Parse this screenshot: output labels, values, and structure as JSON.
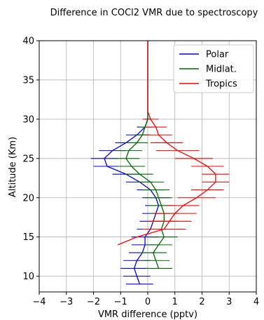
{
  "chart_data": {
    "type": "line",
    "title": "Difference in COCl2 VMR due to spectroscopy",
    "xlabel": "VMR difference (pptv)",
    "ylabel": "Altitude (Km)",
    "xlim": [
      -4,
      4
    ],
    "ylim": [
      8,
      40
    ],
    "xticks": [
      -4,
      -3,
      -2,
      -1,
      0,
      1,
      2,
      3,
      4
    ],
    "yticks": [
      10,
      15,
      20,
      25,
      30,
      35,
      40
    ],
    "xtick_labels": [
      "−4",
      "−3",
      "−2",
      "−1",
      "0",
      "1",
      "2",
      "3",
      "4"
    ],
    "ytick_labels": [
      "10",
      "15",
      "20",
      "25",
      "30",
      "35",
      "40"
    ],
    "grid": true,
    "legend_position": "top-right",
    "series": [
      {
        "name": "Polar",
        "color": "#0000dd",
        "altitude": [
          9,
          10,
          11,
          12,
          13,
          14,
          15,
          16,
          17,
          18,
          19,
          20,
          21,
          22,
          23,
          24,
          25,
          26,
          27,
          28,
          29,
          30,
          31,
          32,
          33,
          34,
          35,
          36,
          37,
          38,
          39,
          40
        ],
        "value": [
          -0.3,
          -0.4,
          -0.5,
          -0.4,
          -0.2,
          -0.1,
          -0.1,
          0.1,
          0.2,
          0.3,
          0.4,
          0.3,
          0.1,
          -0.3,
          -0.8,
          -1.5,
          -1.6,
          -1.3,
          -0.8,
          -0.4,
          -0.1,
          0.0,
          0.0,
          0.0,
          0.0,
          0.0,
          0.0,
          0.0,
          0.0,
          0.0,
          0.0,
          0.0
        ],
        "error": [
          0.5,
          0.5,
          0.5,
          0.5,
          0.5,
          0.5,
          0.5,
          0.5,
          0.5,
          0.5,
          0.5,
          0.5,
          0.5,
          0.5,
          0.5,
          0.5,
          0.5,
          0.5,
          0.4,
          0.4,
          0.3,
          0.1,
          0,
          0,
          0,
          0,
          0,
          0,
          0,
          0,
          0,
          0
        ]
      },
      {
        "name": "Midlat.",
        "color": "#006600",
        "altitude": [
          11,
          12,
          13,
          14,
          15,
          16,
          17,
          18,
          19,
          20,
          21,
          22,
          23,
          24,
          25,
          26,
          27,
          28,
          29,
          30,
          31,
          32,
          33,
          34,
          35,
          36,
          37,
          38,
          39,
          40
        ],
        "value": [
          0.4,
          0.3,
          0.2,
          0.4,
          0.6,
          0.5,
          0.6,
          0.6,
          0.5,
          0.4,
          0.3,
          0.1,
          -0.3,
          -0.6,
          -0.8,
          -0.7,
          -0.4,
          -0.2,
          -0.1,
          0.0,
          0.0,
          0.0,
          0.0,
          0.0,
          0.0,
          0.0,
          0.0,
          0.0,
          0.0,
          0.0
        ],
        "error": [
          0.5,
          0.5,
          0.5,
          0.5,
          0.5,
          0.5,
          0.5,
          0.5,
          0.5,
          0.5,
          0.5,
          0.5,
          0.5,
          0.5,
          0.5,
          0.5,
          0.4,
          0.3,
          0.2,
          0.1,
          0,
          0,
          0,
          0,
          0,
          0,
          0,
          0,
          0,
          0
        ]
      },
      {
        "name": "Tropics",
        "color": "#ff0000",
        "altitude": [
          14,
          15,
          16,
          17,
          18,
          19,
          20,
          21,
          22,
          23,
          24,
          25,
          26,
          27,
          28,
          29,
          30,
          31,
          32,
          33,
          34,
          35,
          36,
          37,
          38,
          39,
          40
        ],
        "value": [
          -1.1,
          -0.4,
          0.6,
          0.8,
          1.0,
          1.3,
          1.8,
          2.2,
          2.5,
          2.5,
          2.2,
          1.7,
          1.1,
          0.7,
          0.4,
          0.3,
          0.1,
          0.0,
          0.0,
          0.0,
          0.0,
          0.0,
          0.0,
          0.0,
          0.0,
          0.0,
          0.0
        ],
        "error": [
          0,
          0,
          0.8,
          0.8,
          0.8,
          0.6,
          0.7,
          0.6,
          0.5,
          0.5,
          0.6,
          0.7,
          0.8,
          0.6,
          0.5,
          0.4,
          0.3,
          0,
          0,
          0,
          0,
          0,
          0,
          0,
          0,
          0,
          0
        ]
      }
    ]
  }
}
